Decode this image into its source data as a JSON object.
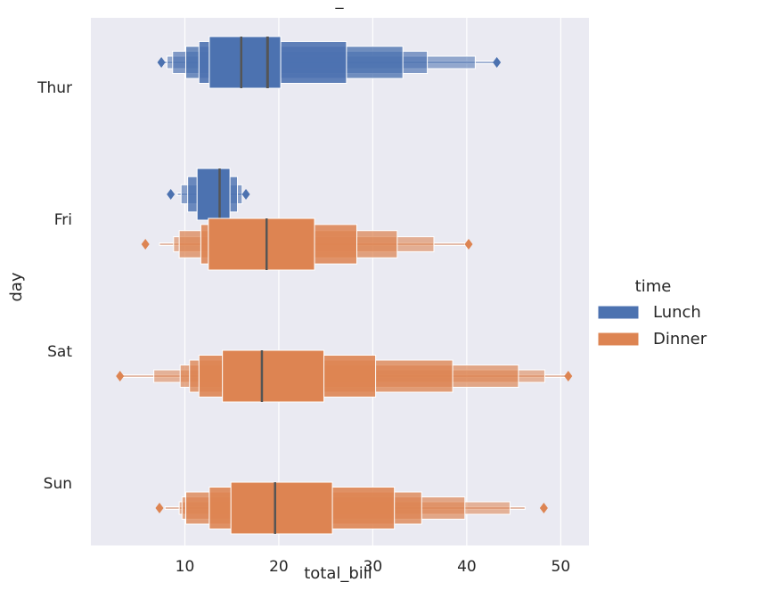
{
  "chart_data": {
    "type": "boxen",
    "title": "_",
    "xlabel": "total_bill",
    "ylabel": "day",
    "xlim": [
      0,
      53
    ],
    "xticks": [
      10,
      20,
      30,
      40,
      50
    ],
    "xtick_labels": [
      "10",
      "20",
      "30",
      "40",
      "50"
    ],
    "categories": [
      "Thur",
      "Fri",
      "Sat",
      "Sun"
    ],
    "grid": true,
    "legend": {
      "title": "time",
      "placement": "right",
      "entries": [
        "Lunch",
        "Dinner"
      ]
    },
    "colors": {
      "Lunch": "#4c72b0",
      "Dinner": "#dd8452",
      "plot_bg": "#eaeaf2",
      "grid": "#ffffff",
      "median": "#555555"
    },
    "series": [
      {
        "name": "Lunch",
        "groups": [
          {
            "category": "Thur",
            "median": 16.0,
            "boxes": [
              [
                12.6,
                20.2
              ],
              [
                11.5,
                27.2
              ],
              [
                10.1,
                33.2
              ],
              [
                8.7,
                35.8
              ],
              [
                8.1,
                40.9
              ],
              [
                7.6,
                43.1
              ]
            ],
            "outliers": [
              7.5,
              43.2
            ]
          },
          {
            "category": "Thur",
            "single": true,
            "value": 18.8
          },
          {
            "category": "Fri",
            "median": 13.7,
            "boxes": [
              [
                11.3,
                14.8
              ],
              [
                10.3,
                15.6
              ],
              [
                9.6,
                16.1
              ],
              [
                9.2,
                16.3
              ]
            ],
            "outliers": [
              8.5,
              16.5
            ]
          }
        ]
      },
      {
        "name": "Dinner",
        "groups": [
          {
            "category": "Fri",
            "median": 18.7,
            "boxes": [
              [
                12.5,
                23.8
              ],
              [
                11.7,
                28.3
              ],
              [
                9.4,
                32.6
              ],
              [
                8.8,
                36.5
              ],
              [
                7.3,
                39.8
              ]
            ],
            "outliers": [
              5.8,
              40.2
            ]
          },
          {
            "category": "Sat",
            "median": 18.2,
            "boxes": [
              [
                14.0,
                24.8
              ],
              [
                11.5,
                30.3
              ],
              [
                10.5,
                38.5
              ],
              [
                9.5,
                45.5
              ],
              [
                6.7,
                48.3
              ],
              [
                3.4,
                50.8
              ]
            ],
            "outliers": [
              3.1,
              50.8
            ]
          },
          {
            "category": "Sun",
            "median": 19.6,
            "boxes": [
              [
                14.9,
                25.7
              ],
              [
                12.6,
                32.3
              ],
              [
                10.1,
                35.2
              ],
              [
                9.7,
                39.8
              ],
              [
                9.4,
                44.6
              ],
              [
                7.9,
                46.2
              ]
            ],
            "outliers": [
              7.3,
              48.2
            ]
          }
        ]
      }
    ]
  }
}
